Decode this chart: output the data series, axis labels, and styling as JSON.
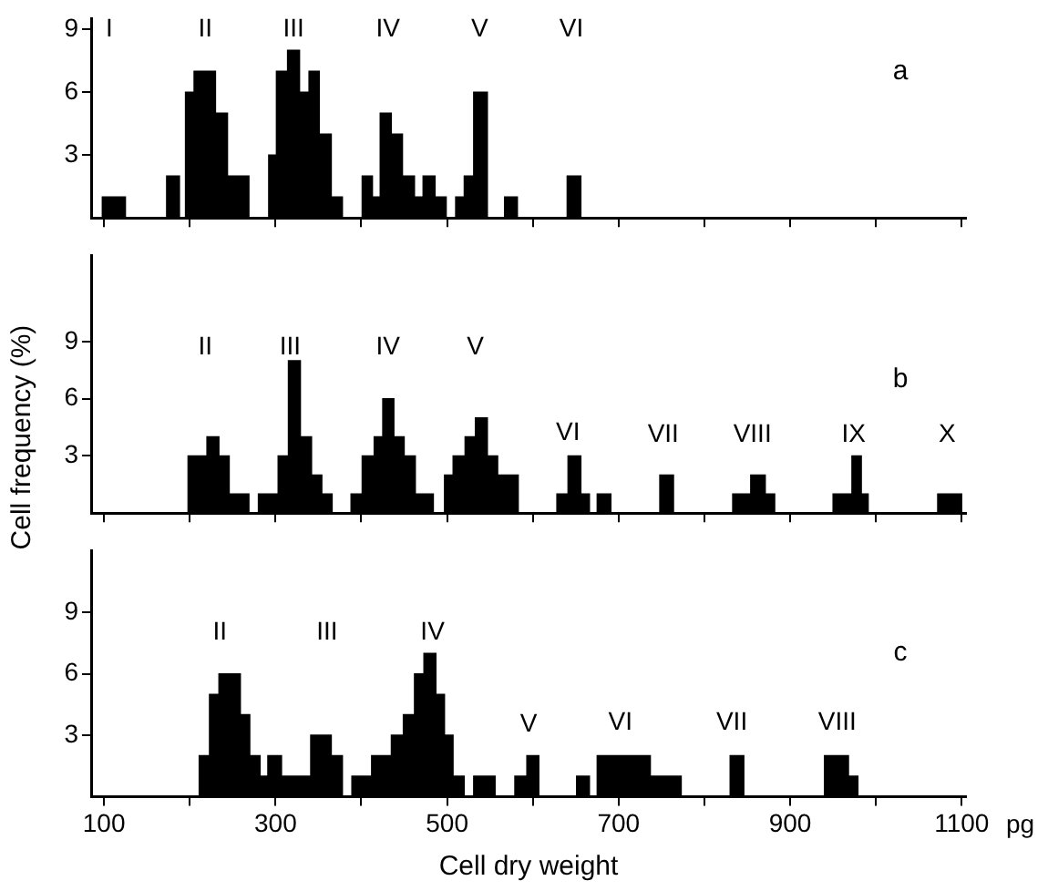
{
  "chart_data": [
    {
      "type": "histogram",
      "title": "a",
      "bins": [
        98,
        125,
        173,
        188,
        195,
        205,
        230,
        244,
        269,
        292,
        301,
        314,
        328,
        339,
        351,
        365,
        378,
        401,
        413,
        422,
        435,
        448,
        462,
        472,
        486,
        499,
        510,
        520,
        531,
        547,
        567,
        582,
        640,
        656
      ],
      "values": [
        1,
        0,
        2,
        0,
        6,
        7,
        5,
        2,
        0,
        3,
        7,
        8,
        6,
        7,
        4,
        1,
        0,
        2,
        1,
        5,
        4,
        2,
        1,
        2,
        1,
        0,
        1,
        2,
        6,
        0,
        1,
        0,
        2
      ],
      "color": "#000000",
      "xlim": [
        85,
        1105
      ],
      "ylim": [
        0,
        9.5
      ],
      "xticks": [
        {
          "value": 100,
          "label": null
        },
        {
          "value": 200,
          "label": null
        },
        {
          "value": 300,
          "label": null
        },
        {
          "value": 400,
          "label": null
        },
        {
          "value": 500,
          "label": null
        },
        {
          "value": 600,
          "label": null
        },
        {
          "value": 700,
          "label": null
        },
        {
          "value": 800,
          "label": null
        },
        {
          "value": 900,
          "label": null
        },
        {
          "value": 1000,
          "label": null
        },
        {
          "value": 1100,
          "label": null
        }
      ],
      "yticks": [
        3,
        6,
        9
      ],
      "tick_labels": "y",
      "grid": false,
      "legend": false,
      "annotations": [
        "I",
        "II",
        "III",
        "IV",
        "V",
        "VI"
      ]
    },
    {
      "type": "histogram",
      "title": "b",
      "ylabel": "Cell frequency (%)",
      "bins": [
        198,
        220,
        234,
        246,
        269,
        280,
        303,
        315,
        329,
        342,
        354,
        366,
        388,
        401,
        415,
        425,
        438,
        450,
        463,
        484,
        497,
        507,
        521,
        533,
        547,
        559,
        583,
        628,
        641,
        656,
        666,
        675,
        691,
        748,
        764,
        833,
        854,
        871,
        882,
        950,
        972,
        983,
        991,
        1072,
        1100
      ],
      "values": [
        3,
        4,
        3,
        1,
        0,
        1,
        3,
        8,
        4,
        2,
        1,
        0,
        1,
        3,
        4,
        6,
        4,
        3,
        1,
        0,
        2,
        3,
        4,
        5,
        3,
        2,
        0,
        1,
        3,
        1,
        0,
        1,
        0,
        2,
        0,
        1,
        2,
        1,
        0,
        1,
        3,
        1,
        0,
        1
      ],
      "color": "#000000",
      "xlim": [
        85,
        1105
      ],
      "ylim": [
        0,
        13.5
      ],
      "xticks": [
        {
          "value": 100,
          "label": null
        },
        {
          "value": 200,
          "label": null
        },
        {
          "value": 300,
          "label": null
        },
        {
          "value": 400,
          "label": null
        },
        {
          "value": 500,
          "label": null
        },
        {
          "value": 600,
          "label": null
        },
        {
          "value": 700,
          "label": null
        },
        {
          "value": 800,
          "label": null
        },
        {
          "value": 900,
          "label": null
        },
        {
          "value": 1000,
          "label": null
        },
        {
          "value": 1100,
          "label": null
        }
      ],
      "yticks": [
        3,
        6,
        9
      ],
      "tick_labels": "y",
      "grid": false,
      "legend": false,
      "annotations": [
        "II",
        "III",
        "IV",
        "V",
        "VI",
        "VII",
        "VIII",
        "IX",
        "X"
      ]
    },
    {
      "type": "histogram",
      "title": "c",
      "xlabel": "Cell dry weight",
      "bins": [
        211,
        223,
        234,
        259,
        270,
        282,
        291,
        307,
        341,
        365,
        378,
        389,
        412,
        435,
        449,
        462,
        473,
        487,
        497,
        507,
        520,
        531,
        556,
        579,
        593,
        607,
        651,
        666,
        675,
        737,
        773,
        830,
        846,
        940,
        968,
        979
      ],
      "values": [
        2,
        5,
        6,
        4,
        2,
        1,
        2,
        1,
        3,
        2,
        0,
        1,
        2,
        3,
        4,
        6,
        7,
        5,
        3,
        1,
        0,
        1,
        0,
        1,
        2,
        0,
        1,
        0,
        2,
        1,
        0,
        2,
        0,
        2,
        1
      ],
      "color": "#000000",
      "xlim": [
        85,
        1105
      ],
      "ylim": [
        0,
        12
      ],
      "xticks": [
        100,
        {
          "value": 200,
          "label": null
        },
        300,
        {
          "value": 400,
          "label": null
        },
        500,
        {
          "value": 600,
          "label": null
        },
        700,
        {
          "value": 800,
          "label": null
        },
        900,
        {
          "value": 1000,
          "label": null
        },
        1100
      ],
      "yticks": [
        3,
        6,
        9
      ],
      "grid": false,
      "legend": false,
      "annotations": [
        "pg",
        "II",
        "III",
        "IV",
        "V",
        "VI",
        "VII",
        "VIII"
      ]
    }
  ]
}
